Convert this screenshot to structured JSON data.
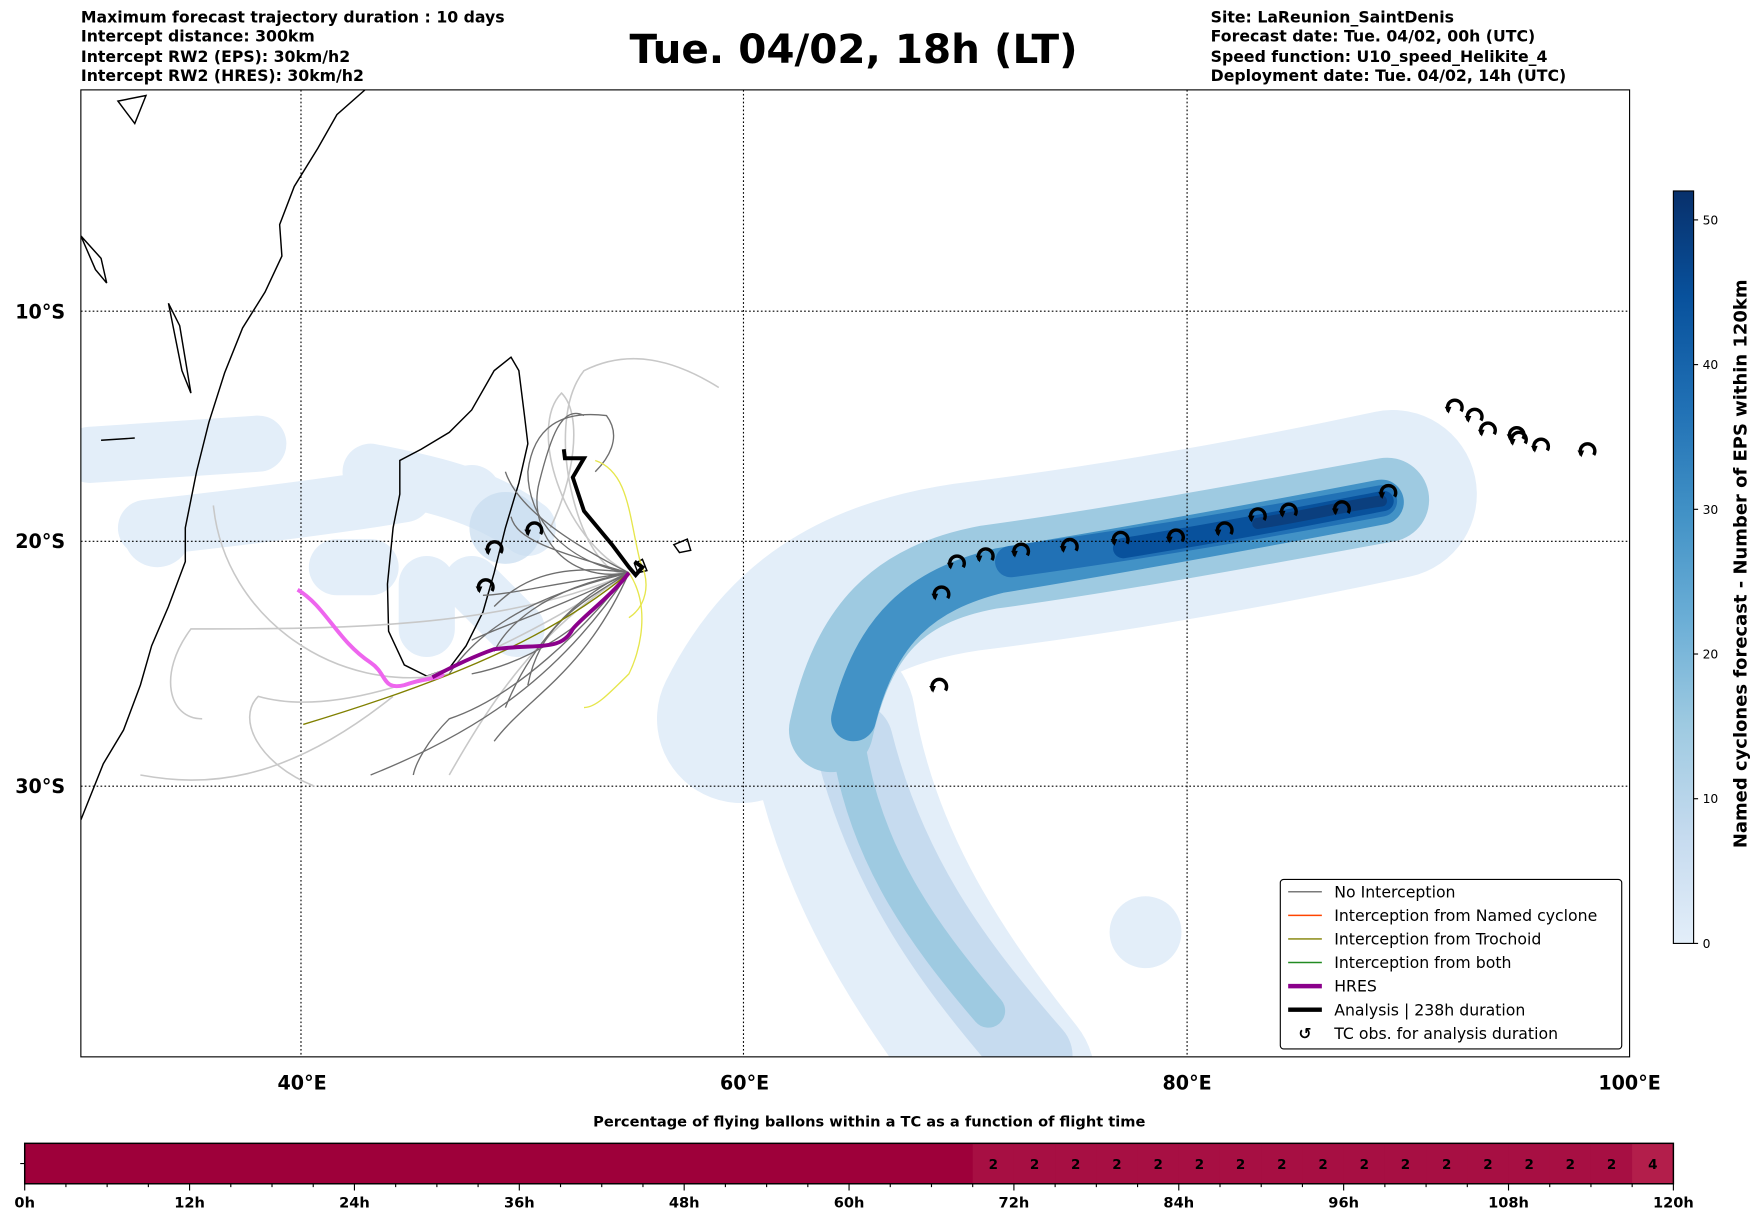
{
  "header": {
    "left": [
      "Maximum forecast trajectory duration : 10 days",
      "Intercept distance: 300km",
      "Intercept RW2 (EPS):  30km/h2",
      "Intercept RW2 (HRES): 30km/h2"
    ],
    "title": "Tue. 04/02, 18h (LT)",
    "right": [
      "Site: LaReunion_SaintDenis",
      "Forecast date: Tue. 04/02, 00h (UTC)",
      "Speed function: U10_speed_Helikite_4",
      "Deployment date: Tue. 04/02, 14h (UTC)"
    ]
  },
  "map": {
    "lon_range": [
      30,
      100
    ],
    "lat_range": [
      -40.5,
      0
    ],
    "lon_ticks": [
      {
        "value": 40,
        "label": "40°E"
      },
      {
        "value": 60,
        "label": "60°E"
      },
      {
        "value": 80,
        "label": "80°E"
      },
      {
        "value": 100,
        "label": "100°E"
      }
    ],
    "lat_ticks": [
      {
        "value": -10,
        "label": "10°S"
      },
      {
        "value": -20,
        "label": "20°S"
      },
      {
        "value": -30,
        "label": "30°S"
      }
    ],
    "tc_symbol": "↺",
    "tc_observations": [
      [
        92.1,
        -14.2
      ],
      [
        93.0,
        -14.6
      ],
      [
        93.6,
        -15.2
      ],
      [
        94.9,
        -15.4
      ],
      [
        95.0,
        -15.6
      ],
      [
        96.0,
        -15.9
      ],
      [
        98.1,
        -16.1
      ],
      [
        89.1,
        -17.9
      ],
      [
        87.0,
        -18.6
      ],
      [
        84.6,
        -18.7
      ],
      [
        83.2,
        -18.9
      ],
      [
        81.7,
        -19.5
      ],
      [
        79.5,
        -19.8
      ],
      [
        77.0,
        -19.9
      ],
      [
        74.7,
        -20.2
      ],
      [
        72.5,
        -20.4
      ],
      [
        70.9,
        -20.6
      ],
      [
        69.6,
        -20.9
      ],
      [
        68.9,
        -22.2
      ],
      [
        68.8,
        -26.0
      ],
      [
        48.3,
        -21.9
      ],
      [
        48.7,
        -20.3
      ],
      [
        50.5,
        -19.5
      ]
    ]
  },
  "legend": {
    "items": [
      {
        "label": "No Interception",
        "color": "#7a7a7a"
      },
      {
        "label": "Interception from Named cyclone",
        "color": "#ff4500"
      },
      {
        "label": "Interception from Trochoid",
        "color": "#808000"
      },
      {
        "label": "Interception from both",
        "color": "#228b22"
      },
      {
        "label": "HRES",
        "color": "#8b008b"
      },
      {
        "label": "Analysis | 238h duration",
        "color": "#000000"
      },
      {
        "label": "TC obs. for analysis duration",
        "color": "#000000"
      }
    ]
  },
  "colorbar": {
    "label": "Named cyclones forecast - Number of EPS within 120km",
    "min": 0,
    "max": 52,
    "ticks": [
      "0",
      "10",
      "20",
      "30",
      "40",
      "50"
    ],
    "colors": [
      "#e3eef9",
      "#c6dbef",
      "#9ecae1",
      "#6baed6",
      "#4292c6",
      "#2171b5",
      "#08519c",
      "#08306b"
    ]
  },
  "chart_data": {
    "type": "heatmap",
    "title": "Percentage of flying ballons within a TC as a function of flight time",
    "x_unit": "h",
    "bin_hours": 3,
    "xlim": [
      0,
      120
    ],
    "x_ticks": [
      "0h",
      "12h",
      "24h",
      "36h",
      "48h",
      "60h",
      "72h",
      "84h",
      "96h",
      "108h",
      "120h"
    ],
    "values": [
      0,
      0,
      0,
      0,
      0,
      0,
      0,
      0,
      0,
      0,
      0,
      0,
      0,
      0,
      0,
      0,
      0,
      0,
      0,
      0,
      0,
      0,
      0,
      2,
      2,
      2,
      2,
      2,
      2,
      2,
      2,
      2,
      2,
      2,
      2,
      2,
      2,
      2,
      2,
      4
    ],
    "colors": {
      "0": "#9e003a",
      "2": "#a70f43",
      "4": "#b31e4b"
    }
  }
}
